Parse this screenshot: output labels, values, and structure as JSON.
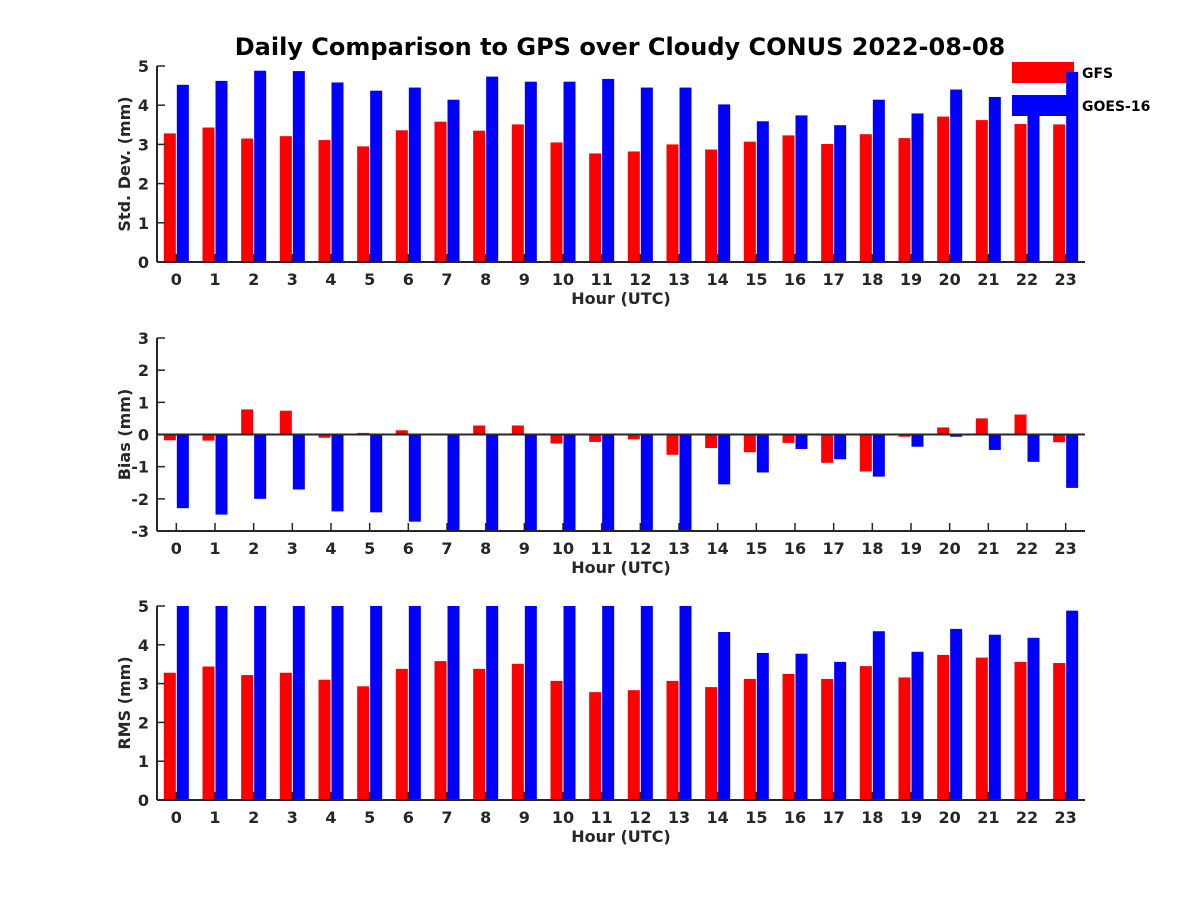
{
  "title": "Daily Comparison to GPS over Cloudy CONUS 2022-08-08",
  "legend": {
    "placement": "top-right",
    "entries": [
      {
        "name": "GFS",
        "color": "#ff0000"
      },
      {
        "name": "GOES-16",
        "color": "#0000ff"
      }
    ]
  },
  "chart_data": [
    {
      "type": "bar",
      "title": "",
      "xlabel": "Hour (UTC)",
      "ylabel": "Std. Dev. (mm)",
      "ylim": [
        0,
        5
      ],
      "yticks": [
        0,
        1,
        2,
        3,
        4,
        5
      ],
      "categories": [
        "0",
        "1",
        "2",
        "3",
        "4",
        "5",
        "6",
        "7",
        "8",
        "9",
        "10",
        "11",
        "12",
        "13",
        "14",
        "15",
        "16",
        "17",
        "18",
        "19",
        "20",
        "21",
        "22",
        "23"
      ],
      "series": [
        {
          "name": "GFS",
          "color": "#ff0000",
          "values": [
            3.28,
            3.43,
            3.15,
            3.21,
            3.11,
            2.95,
            3.36,
            3.58,
            3.35,
            3.51,
            3.05,
            2.77,
            2.82,
            3.0,
            2.87,
            3.07,
            3.23,
            3.01,
            3.26,
            3.16,
            3.71,
            3.62,
            3.52,
            3.51
          ]
        },
        {
          "name": "GOES-16",
          "color": "#0000ff",
          "values": [
            4.52,
            4.62,
            4.88,
            4.87,
            4.58,
            4.37,
            4.45,
            4.14,
            4.73,
            4.6,
            4.6,
            4.67,
            4.45,
            4.45,
            4.02,
            3.59,
            3.74,
            3.49,
            4.14,
            3.79,
            4.4,
            4.21,
            4.08,
            4.85
          ]
        }
      ]
    },
    {
      "type": "bar",
      "title": "",
      "xlabel": "Hour (UTC)",
      "ylabel": "Bias (mm)",
      "ylim": [
        -3,
        3
      ],
      "yticks": [
        -3,
        -2,
        -1,
        0,
        1,
        2,
        3
      ],
      "categories": [
        "0",
        "1",
        "2",
        "3",
        "4",
        "5",
        "6",
        "7",
        "8",
        "9",
        "10",
        "11",
        "12",
        "13",
        "14",
        "15",
        "16",
        "17",
        "18",
        "19",
        "20",
        "21",
        "22",
        "23"
      ],
      "series": [
        {
          "name": "GFS",
          "color": "#ff0000",
          "values": [
            -0.18,
            -0.19,
            0.78,
            0.74,
            -0.1,
            0.05,
            0.13,
            0.0,
            0.28,
            0.28,
            -0.28,
            -0.23,
            -0.15,
            -0.63,
            -0.42,
            -0.55,
            -0.26,
            -0.88,
            -1.15,
            -0.07,
            0.22,
            0.5,
            0.62,
            -0.24
          ]
        },
        {
          "name": "GOES-16",
          "color": "#0000ff",
          "values": [
            -2.29,
            -2.49,
            -2.0,
            -1.71,
            -2.39,
            -2.42,
            -2.71,
            -3.0,
            -3.0,
            -3.0,
            -3.0,
            -3.0,
            -3.0,
            -3.0,
            -1.55,
            -1.18,
            -0.45,
            -0.77,
            -1.31,
            -0.38,
            -0.07,
            -0.48,
            -0.85,
            -1.66
          ]
        }
      ]
    },
    {
      "type": "bar",
      "title": "",
      "xlabel": "Hour (UTC)",
      "ylabel": "RMS (mm)",
      "ylim": [
        0,
        5
      ],
      "yticks": [
        0,
        1,
        2,
        3,
        4,
        5
      ],
      "categories": [
        "0",
        "1",
        "2",
        "3",
        "4",
        "5",
        "6",
        "7",
        "8",
        "9",
        "10",
        "11",
        "12",
        "13",
        "14",
        "15",
        "16",
        "17",
        "18",
        "19",
        "20",
        "21",
        "22",
        "23"
      ],
      "series": [
        {
          "name": "GFS",
          "color": "#ff0000",
          "values": [
            3.28,
            3.44,
            3.22,
            3.28,
            3.1,
            2.93,
            3.38,
            3.58,
            3.38,
            3.51,
            3.07,
            2.78,
            2.83,
            3.07,
            2.91,
            3.12,
            3.25,
            3.12,
            3.45,
            3.16,
            3.74,
            3.67,
            3.56,
            3.53
          ]
        },
        {
          "name": "GOES-16",
          "color": "#0000ff",
          "values": [
            5.0,
            5.0,
            5.0,
            5.0,
            5.0,
            5.0,
            5.0,
            5.0,
            5.0,
            5.0,
            5.0,
            5.0,
            5.0,
            5.0,
            4.33,
            3.79,
            3.77,
            3.56,
            4.35,
            3.82,
            4.41,
            4.26,
            4.18,
            4.88
          ]
        }
      ]
    }
  ]
}
